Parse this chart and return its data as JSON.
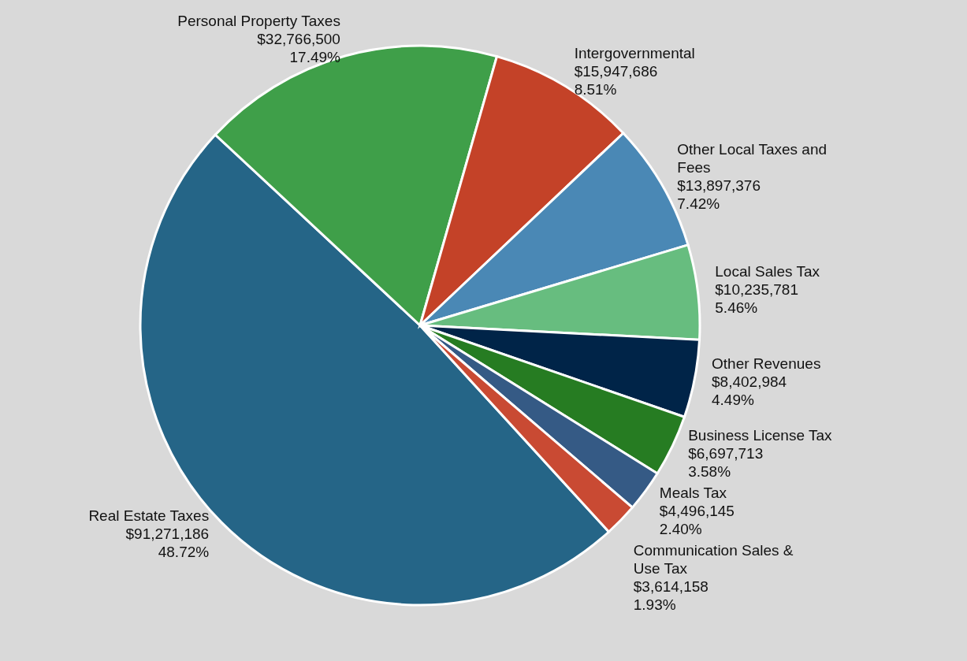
{
  "chart_data": {
    "type": "pie",
    "categories": [
      "Real Estate Taxes",
      "Personal Property Taxes",
      "Intergovernmental",
      "Other Local Taxes and Fees",
      "Local Sales Tax",
      "Other Revenues",
      "Business License Tax",
      "Meals Tax",
      "Communication Sales & Use Tax"
    ],
    "values": [
      91271186,
      32766500,
      15947686,
      13897376,
      10235781,
      8402984,
      6697713,
      4496145,
      3614158
    ],
    "colors": [
      "#256587",
      "#3f9f49",
      "#c44228",
      "#4a88b5",
      "#67bd7f",
      "#002448",
      "#267c22",
      "#355a85",
      "#c94a33"
    ],
    "value_labels": [
      "$91,271,186 48.72%",
      "$32,766,500 17.49%",
      "$15,947,686 8.51%",
      "$13,897,376 7.42%",
      "$10,235,781 5.46%",
      "$8,402,984 4.49%",
      "$6,697,713 3.58%",
      "$4,496,145 2.40%",
      "$3,614,158 1.93%"
    ]
  }
}
